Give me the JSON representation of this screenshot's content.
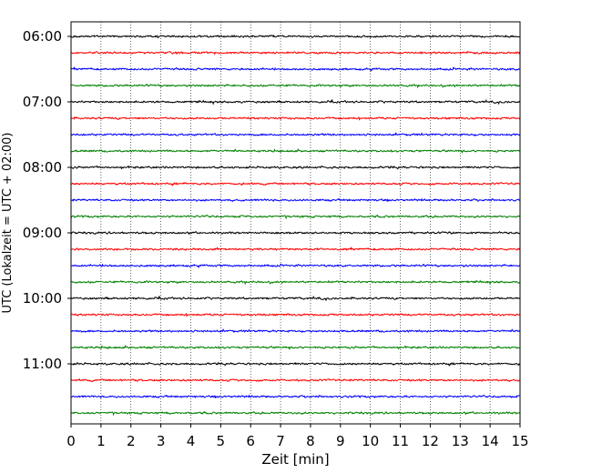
{
  "chart_data": {
    "type": "line",
    "xlabel": "Zeit  [min]",
    "ylabel": "UTC (Lokalzeit = UTC + 02:00)",
    "xlim": [
      0,
      15
    ],
    "x_ticks": [
      "0",
      "1",
      "2",
      "3",
      "4",
      "5",
      "6",
      "7",
      "8",
      "9",
      "10",
      "11",
      "12",
      "13",
      "14",
      "15"
    ],
    "y_tick_labels": [
      "06:00",
      "07:00",
      "08:00",
      "09:00",
      "10:00",
      "11:00"
    ],
    "traces_per_hour": 4,
    "trace_start_times": [
      "06:00",
      "06:15",
      "06:30",
      "06:45",
      "07:00",
      "07:15",
      "07:30",
      "07:45",
      "08:00",
      "08:15",
      "08:30",
      "08:45",
      "09:00",
      "09:15",
      "09:30",
      "09:45",
      "10:00",
      "10:15",
      "10:30",
      "10:45",
      "11:00",
      "11:15",
      "11:30",
      "11:45"
    ],
    "series_colors": [
      "#000000",
      "#ff0000",
      "#0000ff",
      "#008000"
    ],
    "grid": {
      "x": true,
      "y": false,
      "style": "dotted"
    },
    "legend": "none"
  }
}
